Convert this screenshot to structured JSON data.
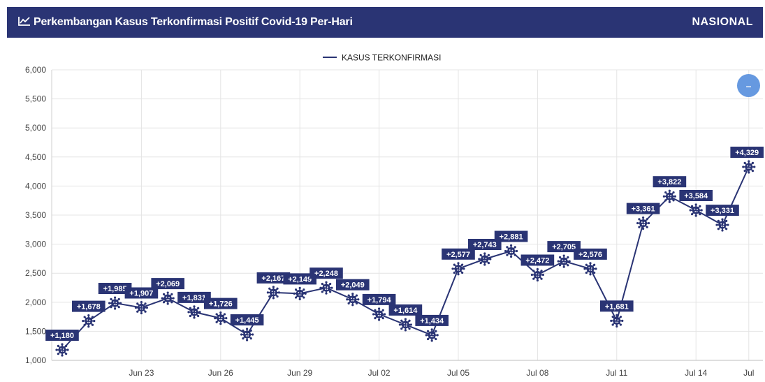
{
  "header": {
    "title": "Perkembangan Kasus Terkonfirmasi Positif Covid-19 Per-Hari",
    "scope": "NASIONAL",
    "title_icon": "line-chart-icon"
  },
  "zoom_button": {
    "icon": "minus-icon",
    "label": "–"
  },
  "colors": {
    "header_bg": "#2a3474",
    "series": "#2a3474",
    "label_bg": "#2a3474",
    "grid": "#e4e4e4",
    "zoom_button": "#6699e0"
  },
  "chart_data": {
    "type": "line",
    "title": "",
    "xlabel": "",
    "ylabel": "",
    "ylim": [
      1000,
      6000
    ],
    "yticks": [
      "1,000",
      "1,500",
      "2,000",
      "2,500",
      "3,000",
      "3,500",
      "4,000",
      "4,500",
      "5,000",
      "5,500",
      "6,000"
    ],
    "x": [
      "Jun 20",
      "Jun 21",
      "Jun 22",
      "Jun 23",
      "Jun 24",
      "Jun 25",
      "Jun 26",
      "Jun 27",
      "Jun 28",
      "Jun 29",
      "Jun 30",
      "Jul 01",
      "Jul 02",
      "Jul 03",
      "Jul 04",
      "Jul 05",
      "Jul 06",
      "Jul 07",
      "Jul 08",
      "Jul 09",
      "Jul 10",
      "Jul 11",
      "Jul 12",
      "Jul 13",
      "Jul 14",
      "Jul 15",
      "Jul 16"
    ],
    "xticks": [
      "Jun 23",
      "Jun 26",
      "Jun 29",
      "Jul 02",
      "Jul 05",
      "Jul 08",
      "Jul 11",
      "Jul 14",
      "Jul"
    ],
    "grid": true,
    "legend": "top-center",
    "series": [
      {
        "name": "KASUS TERKONFIRMASI",
        "values": [
          1180,
          1678,
          1985,
          1907,
          2069,
          1831,
          1726,
          1445,
          2167,
          2149,
          2248,
          2049,
          1794,
          1614,
          1434,
          2577,
          2743,
          2881,
          2472,
          2705,
          2576,
          1681,
          3361,
          3822,
          3584,
          3331,
          4329
        ],
        "labels": [
          "+1,180",
          "+1,678",
          "+1,985",
          "+1,907",
          "+2,069",
          "+1,831",
          "+1,726",
          "+1,445",
          "+2,167",
          "+2,149",
          "+2,248",
          "+2,049",
          "+1,794",
          "+1,614",
          "+1,434",
          "+2,577",
          "+2,743",
          "+2,881",
          "+2,472",
          "+2,705",
          "+2,576",
          "+1,681",
          "+3,361",
          "+3,822",
          "+3,584",
          "+3,331",
          "+4,329"
        ]
      }
    ]
  }
}
